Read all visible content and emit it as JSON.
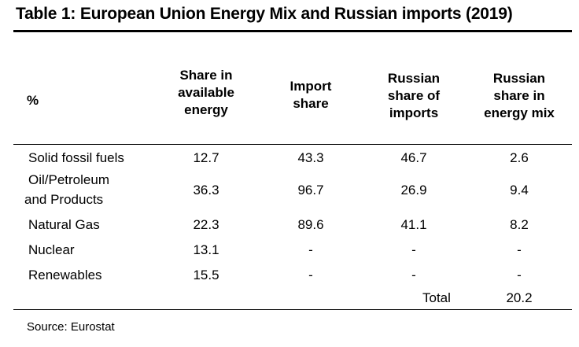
{
  "table": {
    "title": "Table 1: European Union Energy Mix and Russian imports (2019)",
    "unit_label": "%",
    "headers": [
      [
        "Share in",
        "available",
        "energy"
      ],
      [
        "Import",
        "share"
      ],
      [
        "Russian",
        "share of",
        "imports"
      ],
      [
        "Russian",
        "share in",
        "energy mix"
      ]
    ],
    "rows": [
      {
        "label": [
          "Solid fossil fuels"
        ],
        "values": [
          "12.7",
          "43.3",
          "46.7",
          "2.6"
        ]
      },
      {
        "label": [
          "Oil/Petroleum",
          "and Products"
        ],
        "values": [
          "36.3",
          "96.7",
          "26.9",
          "9.4"
        ]
      },
      {
        "label": [
          "Natural Gas"
        ],
        "values": [
          "22.3",
          "89.6",
          "41.1",
          "8.2"
        ]
      },
      {
        "label": [
          "Nuclear"
        ],
        "values": [
          "13.1",
          "-",
          "-",
          "-"
        ]
      },
      {
        "label": [
          "Renewables"
        ],
        "values": [
          "15.5",
          "-",
          "-",
          "-"
        ]
      }
    ],
    "total_label": "Total",
    "total_value": "20.2",
    "source": "Source: Eurostat"
  }
}
